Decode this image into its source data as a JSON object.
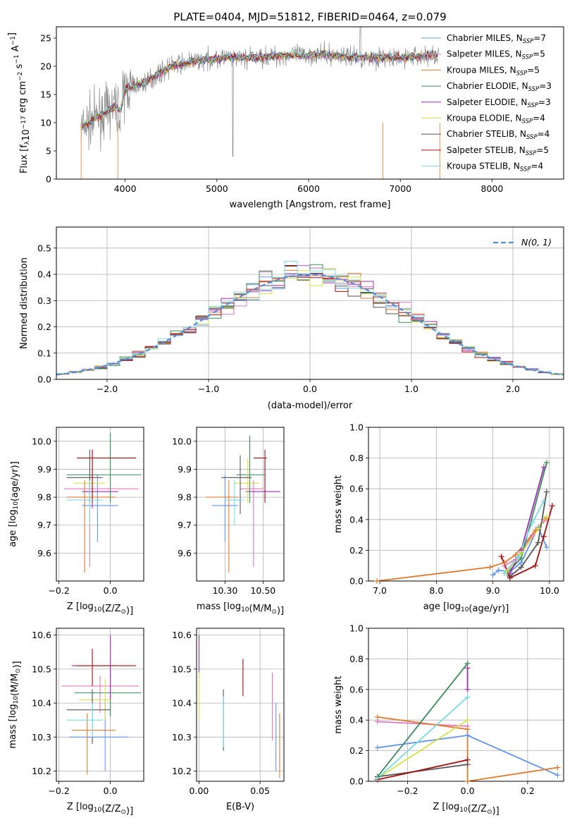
{
  "figure_title": "PLATE=0404, MJD=51812, FIBERID=0464, z=0.079",
  "colors": {
    "Chabrier MILES": "#6495ed",
    "Salpeter MILES": "#e377c2",
    "Kroupa MILES": "#e07a30",
    "Chabrier ELODIE": "#3a8a5a",
    "Salpeter ELODIE": "#9b2fae",
    "Kroupa ELODIE": "#d4e04a",
    "Chabrier STELIB": "#555555",
    "Salpeter STELIB": "#a01010",
    "Kroupa STELIB": "#7fd8e0",
    "normal": "#5b8bd0"
  },
  "chart_data": [
    {
      "id": "spectrum",
      "type": "line",
      "xlabel": "wavelength [Angstrom, rest frame]",
      "ylabel": "Flux [fλ10⁻¹⁷ erg cm⁻² s⁻¹ A⁻¹]",
      "xlim": [
        3250,
        8780
      ],
      "ylim": [
        0,
        27
      ],
      "xticks": [
        4000,
        5000,
        6000,
        7000,
        8000
      ],
      "yticks": [
        0,
        5,
        10,
        15,
        20,
        25
      ],
      "grid": false,
      "legend_position": "top-right",
      "legend": [
        {
          "name": "Chabrier MILES",
          "sub": "7"
        },
        {
          "name": "Salpeter MILES",
          "sub": "5"
        },
        {
          "name": "Kroupa MILES",
          "sub": "5"
        },
        {
          "name": "Chabrier ELODIE",
          "sub": "3"
        },
        {
          "name": "Salpeter ELODIE",
          "sub": "3"
        },
        {
          "name": "Kroupa ELODIE",
          "sub": "4"
        },
        {
          "name": "Chabrier STELIB",
          "sub": "4"
        },
        {
          "name": "Salpeter STELIB",
          "sub": "5"
        },
        {
          "name": "Kroupa STELIB",
          "sub": "4"
        }
      ],
      "continuum": [
        [
          3520,
          9
        ],
        [
          3700,
          11
        ],
        [
          3900,
          13
        ],
        [
          3950,
          12
        ],
        [
          4000,
          16
        ],
        [
          4200,
          17
        ],
        [
          4500,
          20
        ],
        [
          4800,
          21
        ],
        [
          5100,
          21.5
        ],
        [
          5400,
          21.5
        ],
        [
          5800,
          22
        ],
        [
          6200,
          22
        ],
        [
          6600,
          21.5
        ],
        [
          7000,
          21.5
        ],
        [
          7400,
          22
        ]
      ],
      "data_end": 7420
    },
    {
      "id": "residuals",
      "type": "line",
      "xlabel": "(data-model)/error",
      "ylabel": "Normed distribution",
      "xlim": [
        -2.5,
        2.5
      ],
      "ylim": [
        0,
        0.58
      ],
      "xticks": [
        -2,
        -1,
        0,
        1,
        2
      ],
      "yticks": [
        0.0,
        0.1,
        0.2,
        0.3,
        0.4,
        0.5
      ],
      "grid": true,
      "legend_position": "top-right",
      "normal_label": "N(0, 1)"
    },
    {
      "id": "age_vs_Z",
      "type": "scatter",
      "xlabel": "Z [log10(Z/Z⊙)]",
      "ylabel": "age  [log10(age/yr)]",
      "xlim": [
        -0.21,
        0.13
      ],
      "ylim": [
        9.5,
        10.05
      ],
      "xticks": [
        -0.2,
        0.0
      ],
      "yticks": [
        9.6,
        9.7,
        9.8,
        9.9,
        10.0
      ],
      "grid": true,
      "points": [
        {
          "s": "Chabrier MILES",
          "x": -0.05,
          "y": 9.77,
          "xe": [
            -0.11,
            0.03
          ],
          "ye": [
            9.64,
            9.88
          ]
        },
        {
          "s": "Salpeter MILES",
          "x": -0.08,
          "y": 9.83,
          "xe": [
            -0.18,
            0.11
          ],
          "ye": [
            9.55,
            9.86
          ]
        },
        {
          "s": "Kroupa MILES",
          "x": -0.1,
          "y": 9.8,
          "xe": [
            -0.17,
            0.02
          ],
          "ye": [
            9.53,
            9.86
          ]
        },
        {
          "s": "Chabrier ELODIE",
          "x": 0.0,
          "y": 9.88,
          "xe": [
            -0.17,
            0.12
          ],
          "ye": [
            9.78,
            10.03
          ]
        },
        {
          "s": "Salpeter ELODIE",
          "x": -0.07,
          "y": 9.82,
          "xe": [
            -0.11,
            0.03
          ],
          "ye": [
            9.76,
            9.97
          ]
        },
        {
          "s": "Kroupa ELODIE",
          "x": -0.07,
          "y": 9.85,
          "xe": [
            -0.14,
            -0.02
          ],
          "ye": [
            9.78,
            9.94
          ]
        },
        {
          "s": "Chabrier STELIB",
          "x": -0.08,
          "y": 9.87,
          "xe": [
            -0.17,
            -0.03
          ],
          "ye": [
            9.78,
            9.97
          ]
        },
        {
          "s": "Salpeter STELIB",
          "x": -0.07,
          "y": 9.94,
          "xe": [
            -0.13,
            0.1
          ],
          "ye": [
            9.78,
            9.97
          ]
        },
        {
          "s": "Kroupa STELIB",
          "x": -0.08,
          "y": 9.79,
          "xe": [
            -0.17,
            -0.03
          ],
          "ye": [
            9.7,
            9.86
          ]
        }
      ]
    },
    {
      "id": "age_vs_mass",
      "type": "scatter",
      "xlabel": "mass [log10(M/M⊙)]",
      "ylabel": "",
      "xlim": [
        10.15,
        10.61
      ],
      "ylim": [
        9.5,
        10.05
      ],
      "xticks": [
        10.3,
        10.5
      ],
      "yticks": [
        9.6,
        9.7,
        9.8,
        9.9,
        10.0
      ],
      "grid": true,
      "points": [
        {
          "s": "Chabrier MILES",
          "x": 10.3,
          "y": 9.77,
          "xe": [
            10.23,
            10.37
          ],
          "ye": [
            9.64,
            9.88
          ]
        },
        {
          "s": "Salpeter MILES",
          "x": 10.45,
          "y": 9.83,
          "xe": [
            10.38,
            10.5
          ],
          "ye": [
            9.55,
            9.86
          ]
        },
        {
          "s": "Kroupa MILES",
          "x": 10.32,
          "y": 9.8,
          "xe": [
            10.2,
            10.37
          ],
          "ye": [
            9.53,
            9.86
          ]
        },
        {
          "s": "Chabrier ELODIE",
          "x": 10.43,
          "y": 9.88,
          "xe": [
            10.36,
            10.51
          ],
          "ye": [
            9.78,
            10.02
          ]
        },
        {
          "s": "Salpeter ELODIE",
          "x": 10.51,
          "y": 9.82,
          "xe": [
            10.41,
            10.59
          ],
          "ye": [
            9.79,
            9.94
          ]
        },
        {
          "s": "Kroupa ELODIE",
          "x": 10.42,
          "y": 9.85,
          "xe": [
            10.35,
            10.48
          ],
          "ye": [
            9.78,
            9.94
          ]
        },
        {
          "s": "Chabrier STELIB",
          "x": 10.38,
          "y": 9.87,
          "xe": [
            10.28,
            10.44
          ],
          "ye": [
            9.74,
            9.95
          ]
        },
        {
          "s": "Salpeter STELIB",
          "x": 10.51,
          "y": 9.94,
          "xe": [
            10.45,
            10.52
          ],
          "ye": [
            9.78,
            9.97
          ]
        },
        {
          "s": "Kroupa STELIB",
          "x": 10.35,
          "y": 9.79,
          "xe": [
            10.3,
            10.4
          ],
          "ye": [
            9.7,
            9.86
          ]
        }
      ]
    },
    {
      "id": "massweight_vs_age",
      "type": "line",
      "xlabel": "age  [log10(age/yr)]",
      "ylabel": "mass weight",
      "xlim": [
        6.8,
        10.25
      ],
      "ylim": [
        0,
        1.0
      ],
      "xticks": [
        7,
        8,
        9,
        10
      ],
      "yticks": [
        0.0,
        0.2,
        0.4,
        0.6,
        0.8,
        1.0
      ],
      "grid": true,
      "series": [
        {
          "s": "Chabrier MILES",
          "points": [
            [
              9.0,
              0.04
            ],
            [
              9.1,
              0.07
            ],
            [
              9.3,
              0.06
            ],
            [
              9.5,
              0.12
            ],
            [
              9.8,
              0.35
            ],
            [
              9.95,
              0.22
            ]
          ]
        },
        {
          "s": "Salpeter MILES",
          "points": [
            [
              9.2,
              0.1
            ],
            [
              9.4,
              0.14
            ],
            [
              9.7,
              0.3
            ],
            [
              9.9,
              0.39
            ]
          ]
        },
        {
          "s": "Kroupa MILES",
          "points": [
            [
              6.95,
              0.0
            ],
            [
              8.95,
              0.09
            ],
            [
              9.2,
              0.12
            ],
            [
              9.4,
              0.17
            ],
            [
              9.75,
              0.33
            ],
            [
              9.95,
              0.41
            ]
          ]
        },
        {
          "s": "Chabrier ELODIE",
          "points": [
            [
              9.25,
              0.05
            ],
            [
              9.5,
              0.15
            ],
            [
              9.95,
              0.77
            ]
          ]
        },
        {
          "s": "Salpeter ELODIE",
          "points": [
            [
              9.3,
              0.05
            ],
            [
              9.5,
              0.2
            ],
            [
              9.9,
              0.74
            ]
          ]
        },
        {
          "s": "Kroupa ELODIE",
          "points": [
            [
              9.25,
              0.06
            ],
            [
              9.5,
              0.18
            ],
            [
              9.8,
              0.34
            ],
            [
              9.95,
              0.42
            ]
          ]
        },
        {
          "s": "Chabrier STELIB",
          "points": [
            [
              9.3,
              0.03
            ],
            [
              9.5,
              0.09
            ],
            [
              9.8,
              0.25
            ],
            [
              9.95,
              0.58
            ]
          ]
        },
        {
          "s": "Salpeter STELIB",
          "points": [
            [
              9.15,
              0.16
            ],
            [
              9.3,
              0.02
            ],
            [
              9.75,
              0.1
            ],
            [
              9.9,
              0.29
            ],
            [
              10.05,
              0.49
            ]
          ]
        },
        {
          "s": "Kroupa STELIB",
          "points": [
            [
              9.2,
              0.05
            ],
            [
              9.45,
              0.16
            ],
            [
              9.7,
              0.38
            ],
            [
              9.9,
              0.52
            ]
          ]
        }
      ]
    },
    {
      "id": "mass_vs_Z",
      "type": "scatter",
      "xlabel": "Z [log10(Z/Z⊙)]",
      "ylabel": "mass [log10(M/M⊙)]",
      "xlim": [
        -0.21,
        0.13
      ],
      "ylim": [
        10.17,
        10.62
      ],
      "xticks": [
        -0.2,
        0.0
      ],
      "yticks": [
        10.2,
        10.3,
        10.4,
        10.5,
        10.6
      ],
      "grid": true,
      "points": [
        {
          "s": "Chabrier MILES",
          "x": -0.02,
          "y": 10.3,
          "xe": [
            -0.16,
            0.07
          ],
          "ye": [
            10.2,
            10.41
          ]
        },
        {
          "s": "Salpeter MILES",
          "x": -0.04,
          "y": 10.45,
          "xe": [
            -0.19,
            0.11
          ],
          "ye": [
            10.37,
            10.48
          ]
        },
        {
          "s": "Kroupa MILES",
          "x": -0.09,
          "y": 10.32,
          "xe": [
            -0.15,
            0.02
          ],
          "ye": [
            10.19,
            10.37
          ]
        },
        {
          "s": "Chabrier ELODIE",
          "x": 0.0,
          "y": 10.43,
          "xe": [
            -0.14,
            0.12
          ],
          "ye": [
            10.36,
            10.51
          ]
        },
        {
          "s": "Salpeter ELODIE",
          "x": 0.0,
          "y": 10.51,
          "xe": [
            -0.15,
            0.02
          ],
          "ye": [
            10.41,
            10.6
          ]
        },
        {
          "s": "Kroupa ELODIE",
          "x": -0.02,
          "y": 10.41,
          "xe": [
            -0.12,
            0.0
          ],
          "ye": [
            10.35,
            10.47
          ]
        },
        {
          "s": "Chabrier STELIB",
          "x": -0.07,
          "y": 10.38,
          "xe": [
            -0.17,
            0.0
          ],
          "ye": [
            10.28,
            10.44
          ]
        },
        {
          "s": "Salpeter STELIB",
          "x": -0.07,
          "y": 10.51,
          "xe": [
            -0.13,
            0.1
          ],
          "ye": [
            10.45,
            10.56
          ]
        },
        {
          "s": "Kroupa STELIB",
          "x": -0.07,
          "y": 10.35,
          "xe": [
            -0.17,
            -0.03
          ],
          "ye": [
            10.3,
            10.4
          ]
        }
      ]
    },
    {
      "id": "mass_vs_ebv",
      "type": "scatter",
      "xlabel": "E(B-V)",
      "ylabel": "",
      "xlim": [
        -0.002,
        0.0695
      ],
      "ylim": [
        10.17,
        10.62
      ],
      "xticks": [
        0.0,
        0.05
      ],
      "yticks": [
        10.2,
        10.3,
        10.4,
        10.5,
        10.6
      ],
      "grid": true,
      "points": [
        {
          "s": "Chabrier MILES",
          "x": 0.063,
          "y": 10.3,
          "ye": [
            10.2,
            10.4
          ]
        },
        {
          "s": "Salpeter MILES",
          "x": 0.06,
          "y": 10.42,
          "ye": [
            10.29,
            10.49
          ]
        },
        {
          "s": "Kroupa MILES",
          "x": 0.066,
          "y": 10.28,
          "ye": [
            10.18,
            10.37
          ]
        },
        {
          "s": "Salpeter ELODIE",
          "x": 0.0,
          "y": 10.55,
          "ye": [
            10.49,
            10.6
          ]
        },
        {
          "s": "Kroupa ELODIE",
          "x": 0.0,
          "y": 10.42,
          "ye": [
            10.35,
            10.49
          ]
        },
        {
          "s": "Chabrier STELIB",
          "x": 0.02,
          "y": 10.36,
          "ye": [
            10.26,
            10.44
          ]
        },
        {
          "s": "Salpeter STELIB",
          "x": 0.036,
          "y": 10.47,
          "ye": [
            10.42,
            10.53
          ]
        },
        {
          "s": "Kroupa STELIB",
          "x": 0.02,
          "y": 10.34,
          "ye": [
            10.27,
            10.42
          ]
        }
      ]
    },
    {
      "id": "massweight_vs_Z",
      "type": "line",
      "xlabel": "Z [log10(Z/Z⊙)]",
      "ylabel": "mass weight",
      "xlim": [
        -0.33,
        0.32
      ],
      "ylim": [
        0,
        1.0
      ],
      "xticks": [
        -0.2,
        0.0,
        0.2
      ],
      "yticks": [
        0.0,
        0.2,
        0.4,
        0.6,
        0.8,
        1.0
      ],
      "grid": true,
      "series": [
        {
          "s": "Chabrier MILES",
          "points": [
            [
              -0.3,
              0.22
            ],
            [
              0.0,
              0.3
            ],
            [
              0.3,
              0.04
            ]
          ]
        },
        {
          "s": "Salpeter MILES",
          "points": [
            [
              -0.3,
              0.39
            ],
            [
              0.0,
              0.36
            ]
          ]
        },
        {
          "s": "Kroupa MILES",
          "points": [
            [
              -0.3,
              0.42
            ],
            [
              0.0,
              0.34
            ],
            [
              0.0,
              0.0
            ],
            [
              0.3,
              0.09
            ]
          ]
        },
        {
          "s": "Chabrier ELODIE",
          "points": [
            [
              -0.3,
              0.03
            ],
            [
              0.0,
              0.77
            ]
          ]
        },
        {
          "s": "Salpeter ELODIE",
          "points": [
            [
              0.0,
              0.74
            ],
            [
              0.0,
              0.6
            ]
          ]
        },
        {
          "s": "Kroupa ELODIE",
          "points": [
            [
              -0.3,
              0.02
            ],
            [
              0.0,
              0.4
            ]
          ]
        },
        {
          "s": "Chabrier STELIB",
          "points": [
            [
              -0.3,
              0.03
            ],
            [
              0.0,
              0.11
            ]
          ]
        },
        {
          "s": "Salpeter STELIB",
          "points": [
            [
              -0.3,
              0.01
            ],
            [
              0.0,
              0.14
            ]
          ]
        },
        {
          "s": "Kroupa STELIB",
          "points": [
            [
              -0.3,
              0.02
            ],
            [
              0.0,
              0.55
            ]
          ]
        }
      ]
    }
  ]
}
